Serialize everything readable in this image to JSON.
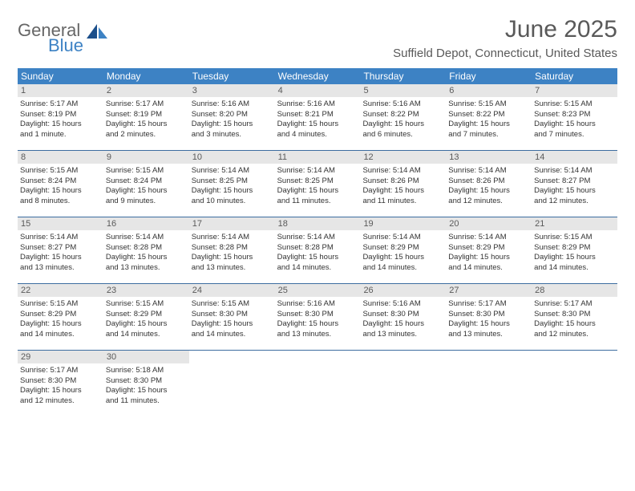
{
  "logo": {
    "text1": "General",
    "text2": "Blue",
    "color_general": "#666666",
    "color_blue": "#3d82c4"
  },
  "title": "June 2025",
  "location": "Suffield Depot, Connecticut, United States",
  "header_bar_color": "#3d82c4",
  "week_border_color": "#3d6da0",
  "daynum_bg": "#e6e6e6",
  "days_of_week": [
    "Sunday",
    "Monday",
    "Tuesday",
    "Wednesday",
    "Thursday",
    "Friday",
    "Saturday"
  ],
  "weeks": [
    [
      {
        "n": "1",
        "sr": "Sunrise: 5:17 AM",
        "ss": "Sunset: 8:19 PM",
        "d1": "Daylight: 15 hours",
        "d2": "and 1 minute."
      },
      {
        "n": "2",
        "sr": "Sunrise: 5:17 AM",
        "ss": "Sunset: 8:19 PM",
        "d1": "Daylight: 15 hours",
        "d2": "and 2 minutes."
      },
      {
        "n": "3",
        "sr": "Sunrise: 5:16 AM",
        "ss": "Sunset: 8:20 PM",
        "d1": "Daylight: 15 hours",
        "d2": "and 3 minutes."
      },
      {
        "n": "4",
        "sr": "Sunrise: 5:16 AM",
        "ss": "Sunset: 8:21 PM",
        "d1": "Daylight: 15 hours",
        "d2": "and 4 minutes."
      },
      {
        "n": "5",
        "sr": "Sunrise: 5:16 AM",
        "ss": "Sunset: 8:22 PM",
        "d1": "Daylight: 15 hours",
        "d2": "and 6 minutes."
      },
      {
        "n": "6",
        "sr": "Sunrise: 5:15 AM",
        "ss": "Sunset: 8:22 PM",
        "d1": "Daylight: 15 hours",
        "d2": "and 7 minutes."
      },
      {
        "n": "7",
        "sr": "Sunrise: 5:15 AM",
        "ss": "Sunset: 8:23 PM",
        "d1": "Daylight: 15 hours",
        "d2": "and 7 minutes."
      }
    ],
    [
      {
        "n": "8",
        "sr": "Sunrise: 5:15 AM",
        "ss": "Sunset: 8:24 PM",
        "d1": "Daylight: 15 hours",
        "d2": "and 8 minutes."
      },
      {
        "n": "9",
        "sr": "Sunrise: 5:15 AM",
        "ss": "Sunset: 8:24 PM",
        "d1": "Daylight: 15 hours",
        "d2": "and 9 minutes."
      },
      {
        "n": "10",
        "sr": "Sunrise: 5:14 AM",
        "ss": "Sunset: 8:25 PM",
        "d1": "Daylight: 15 hours",
        "d2": "and 10 minutes."
      },
      {
        "n": "11",
        "sr": "Sunrise: 5:14 AM",
        "ss": "Sunset: 8:25 PM",
        "d1": "Daylight: 15 hours",
        "d2": "and 11 minutes."
      },
      {
        "n": "12",
        "sr": "Sunrise: 5:14 AM",
        "ss": "Sunset: 8:26 PM",
        "d1": "Daylight: 15 hours",
        "d2": "and 11 minutes."
      },
      {
        "n": "13",
        "sr": "Sunrise: 5:14 AM",
        "ss": "Sunset: 8:26 PM",
        "d1": "Daylight: 15 hours",
        "d2": "and 12 minutes."
      },
      {
        "n": "14",
        "sr": "Sunrise: 5:14 AM",
        "ss": "Sunset: 8:27 PM",
        "d1": "Daylight: 15 hours",
        "d2": "and 12 minutes."
      }
    ],
    [
      {
        "n": "15",
        "sr": "Sunrise: 5:14 AM",
        "ss": "Sunset: 8:27 PM",
        "d1": "Daylight: 15 hours",
        "d2": "and 13 minutes."
      },
      {
        "n": "16",
        "sr": "Sunrise: 5:14 AM",
        "ss": "Sunset: 8:28 PM",
        "d1": "Daylight: 15 hours",
        "d2": "and 13 minutes."
      },
      {
        "n": "17",
        "sr": "Sunrise: 5:14 AM",
        "ss": "Sunset: 8:28 PM",
        "d1": "Daylight: 15 hours",
        "d2": "and 13 minutes."
      },
      {
        "n": "18",
        "sr": "Sunrise: 5:14 AM",
        "ss": "Sunset: 8:28 PM",
        "d1": "Daylight: 15 hours",
        "d2": "and 14 minutes."
      },
      {
        "n": "19",
        "sr": "Sunrise: 5:14 AM",
        "ss": "Sunset: 8:29 PM",
        "d1": "Daylight: 15 hours",
        "d2": "and 14 minutes."
      },
      {
        "n": "20",
        "sr": "Sunrise: 5:14 AM",
        "ss": "Sunset: 8:29 PM",
        "d1": "Daylight: 15 hours",
        "d2": "and 14 minutes."
      },
      {
        "n": "21",
        "sr": "Sunrise: 5:15 AM",
        "ss": "Sunset: 8:29 PM",
        "d1": "Daylight: 15 hours",
        "d2": "and 14 minutes."
      }
    ],
    [
      {
        "n": "22",
        "sr": "Sunrise: 5:15 AM",
        "ss": "Sunset: 8:29 PM",
        "d1": "Daylight: 15 hours",
        "d2": "and 14 minutes."
      },
      {
        "n": "23",
        "sr": "Sunrise: 5:15 AM",
        "ss": "Sunset: 8:29 PM",
        "d1": "Daylight: 15 hours",
        "d2": "and 14 minutes."
      },
      {
        "n": "24",
        "sr": "Sunrise: 5:15 AM",
        "ss": "Sunset: 8:30 PM",
        "d1": "Daylight: 15 hours",
        "d2": "and 14 minutes."
      },
      {
        "n": "25",
        "sr": "Sunrise: 5:16 AM",
        "ss": "Sunset: 8:30 PM",
        "d1": "Daylight: 15 hours",
        "d2": "and 13 minutes."
      },
      {
        "n": "26",
        "sr": "Sunrise: 5:16 AM",
        "ss": "Sunset: 8:30 PM",
        "d1": "Daylight: 15 hours",
        "d2": "and 13 minutes."
      },
      {
        "n": "27",
        "sr": "Sunrise: 5:17 AM",
        "ss": "Sunset: 8:30 PM",
        "d1": "Daylight: 15 hours",
        "d2": "and 13 minutes."
      },
      {
        "n": "28",
        "sr": "Sunrise: 5:17 AM",
        "ss": "Sunset: 8:30 PM",
        "d1": "Daylight: 15 hours",
        "d2": "and 12 minutes."
      }
    ],
    [
      {
        "n": "29",
        "sr": "Sunrise: 5:17 AM",
        "ss": "Sunset: 8:30 PM",
        "d1": "Daylight: 15 hours",
        "d2": "and 12 minutes."
      },
      {
        "n": "30",
        "sr": "Sunrise: 5:18 AM",
        "ss": "Sunset: 8:30 PM",
        "d1": "Daylight: 15 hours",
        "d2": "and 11 minutes."
      },
      {
        "empty": true
      },
      {
        "empty": true
      },
      {
        "empty": true
      },
      {
        "empty": true
      },
      {
        "empty": true
      }
    ]
  ]
}
